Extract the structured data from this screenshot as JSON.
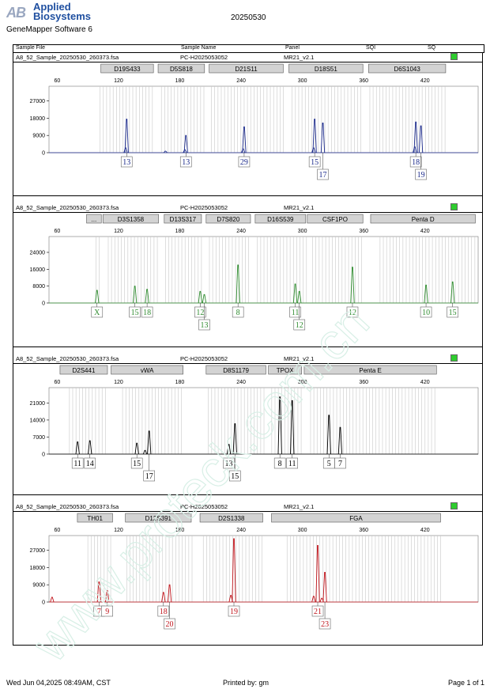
{
  "header": {
    "brand_line1": "Applied",
    "brand_line2": "Biosystems",
    "software": "GeneMapper Software 6",
    "run_date": "20250530",
    "columns": [
      "Sample File",
      "Sample Name",
      "Panel",
      "SQI",
      "SQ"
    ]
  },
  "footer": {
    "date": "Wed Jun 04,2025 08:49AM, CST",
    "printed_by": "Printed by: gm",
    "page": "Page 1 of 1"
  },
  "colors": {
    "blue": "#1b2a8c",
    "green": "#2e8b2e",
    "black": "#000000",
    "red": "#c0141b",
    "status": "#2ecc2e",
    "locus_box": "#d3d3d3",
    "bin_lines": "#c8c8c8",
    "watermark": "#d8efe6"
  },
  "watermark_text": "www.proteck.com.cn",
  "chart_data": [
    {
      "type": "line",
      "dye": "blue",
      "sample_file": "A8_52_Sample_20250530_260373.fsa",
      "sample_name": "PC-H2025053052",
      "panel": "MR21_v2.1",
      "x_ticks": [
        60,
        120,
        180,
        240,
        300,
        360,
        420
      ],
      "xlim": [
        52,
        472
      ],
      "y_ticks": [
        0,
        9000,
        18000,
        27000
      ],
      "ylim": [
        0,
        33000
      ],
      "loci": [
        {
          "name": "D19S433",
          "start": 102,
          "end": 155
        },
        {
          "name": "D5S818",
          "start": 158,
          "end": 205
        },
        {
          "name": "D21S11",
          "start": 208,
          "end": 282
        },
        {
          "name": "D18S51",
          "start": 286,
          "end": 360
        },
        {
          "name": "D6S1043",
          "start": 364,
          "end": 441
        }
      ],
      "bins": [
        [
          102,
          155
        ],
        [
          162,
          205
        ],
        [
          211,
          282
        ],
        [
          290,
          360
        ],
        [
          366,
          441
        ]
      ],
      "peaks": [
        {
          "x": 128,
          "y": 17500
        },
        {
          "x": 127,
          "y": 2500
        },
        {
          "x": 186,
          "y": 9000
        },
        {
          "x": 185,
          "y": 1500
        },
        {
          "x": 166,
          "y": 800
        },
        {
          "x": 243,
          "y": 13500
        },
        {
          "x": 242,
          "y": 2000
        },
        {
          "x": 312,
          "y": 17500
        },
        {
          "x": 320,
          "y": 15500
        },
        {
          "x": 311,
          "y": 2500
        },
        {
          "x": 411,
          "y": 16000
        },
        {
          "x": 416,
          "y": 14000
        },
        {
          "x": 410,
          "y": 3000
        }
      ],
      "alleles": [
        {
          "x": 128,
          "label": "13",
          "row": 1
        },
        {
          "x": 186,
          "label": "13",
          "row": 1
        },
        {
          "x": 243,
          "label": "29",
          "row": 1
        },
        {
          "x": 312,
          "label": "15",
          "row": 1
        },
        {
          "x": 320,
          "label": "17",
          "row": 2
        },
        {
          "x": 411,
          "label": "18",
          "row": 1
        },
        {
          "x": 416,
          "label": "19",
          "row": 2
        }
      ]
    },
    {
      "type": "line",
      "dye": "green",
      "sample_file": "A8_52_Sample_20250530_260373.fsa",
      "sample_name": "PC-H2025053052",
      "panel": "MR21_v2.1",
      "x_ticks": [
        60,
        120,
        180,
        240,
        300,
        360,
        420
      ],
      "xlim": [
        52,
        472
      ],
      "y_ticks": [
        0,
        8000,
        16000,
        24000
      ],
      "ylim": [
        0,
        30000
      ],
      "loci": [
        {
          "name": "...",
          "start": 88,
          "end": 104
        },
        {
          "name": "D3S1358",
          "start": 104,
          "end": 160
        },
        {
          "name": "D13S317",
          "start": 164,
          "end": 202
        },
        {
          "name": "D7S820",
          "start": 205,
          "end": 250
        },
        {
          "name": "D16S539",
          "start": 253,
          "end": 304
        },
        {
          "name": "CSF1PO",
          "start": 304,
          "end": 360
        },
        {
          "name": "Penta D",
          "start": 366,
          "end": 470
        }
      ],
      "bins": [
        [
          98,
          104
        ],
        [
          110,
          160
        ],
        [
          166,
          202
        ],
        [
          209,
          250
        ],
        [
          256,
          304
        ],
        [
          310,
          360
        ],
        [
          376,
          470
        ]
      ],
      "peaks": [
        {
          "x": 99,
          "y": 6000
        },
        {
          "x": 136,
          "y": 8000
        },
        {
          "x": 148,
          "y": 6500
        },
        {
          "x": 200,
          "y": 5500
        },
        {
          "x": 204,
          "y": 4000
        },
        {
          "x": 237,
          "y": 18000
        },
        {
          "x": 293,
          "y": 9000
        },
        {
          "x": 297,
          "y": 5500
        },
        {
          "x": 349,
          "y": 17000
        },
        {
          "x": 421,
          "y": 8500
        },
        {
          "x": 447,
          "y": 10000
        }
      ],
      "alleles": [
        {
          "x": 99,
          "label": "X",
          "row": 1
        },
        {
          "x": 136,
          "label": "15",
          "row": 1
        },
        {
          "x": 148,
          "label": "18",
          "row": 1
        },
        {
          "x": 200,
          "label": "12",
          "row": 1
        },
        {
          "x": 204,
          "label": "13",
          "row": 2
        },
        {
          "x": 237,
          "label": "8",
          "row": 1
        },
        {
          "x": 293,
          "label": "11",
          "row": 1
        },
        {
          "x": 297,
          "label": "12",
          "row": 2
        },
        {
          "x": 349,
          "label": "12",
          "row": 1
        },
        {
          "x": 421,
          "label": "10",
          "row": 1
        },
        {
          "x": 447,
          "label": "15",
          "row": 1
        }
      ]
    },
    {
      "type": "line",
      "dye": "black",
      "sample_file": "A8_52_Sample_20250530_260373.fsa",
      "sample_name": "PC-H2025053052",
      "panel": "MR21_v2.1",
      "x_ticks": [
        60,
        120,
        180,
        240,
        300,
        360,
        420
      ],
      "xlim": [
        52,
        472
      ],
      "y_ticks": [
        0,
        7000,
        14000,
        21000
      ],
      "ylim": [
        0,
        26000
      ],
      "loci": [
        {
          "name": "D2S441",
          "start": 62,
          "end": 110
        },
        {
          "name": "vWA",
          "start": 112,
          "end": 184
        },
        {
          "name": "D8S1179",
          "start": 205,
          "end": 265
        },
        {
          "name": "TPOX",
          "start": 266,
          "end": 300
        },
        {
          "name": "Penta E",
          "start": 301,
          "end": 432
        }
      ],
      "bins": [
        [
          72,
          110
        ],
        [
          124,
          184
        ],
        [
          208,
          265
        ],
        [
          270,
          300
        ],
        [
          308,
          432
        ]
      ],
      "peaks": [
        {
          "x": 80,
          "y": 5000
        },
        {
          "x": 92,
          "y": 5500
        },
        {
          "x": 138,
          "y": 4500
        },
        {
          "x": 150,
          "y": 9500
        },
        {
          "x": 146,
          "y": 1500
        },
        {
          "x": 228,
          "y": 4000
        },
        {
          "x": 234,
          "y": 12500
        },
        {
          "x": 278,
          "y": 23500
        },
        {
          "x": 290,
          "y": 22000
        },
        {
          "x": 326,
          "y": 16000
        },
        {
          "x": 337,
          "y": 11000
        }
      ],
      "alleles": [
        {
          "x": 80,
          "label": "11",
          "row": 1
        },
        {
          "x": 92,
          "label": "14",
          "row": 1
        },
        {
          "x": 138,
          "label": "15",
          "row": 1
        },
        {
          "x": 150,
          "label": "17",
          "row": 2
        },
        {
          "x": 228,
          "label": "13",
          "row": 1
        },
        {
          "x": 234,
          "label": "15",
          "row": 2
        },
        {
          "x": 278,
          "label": "8",
          "row": 1
        },
        {
          "x": 290,
          "label": "11",
          "row": 1
        },
        {
          "x": 326,
          "label": "5",
          "row": 1
        },
        {
          "x": 337,
          "label": "7",
          "row": 1
        }
      ]
    },
    {
      "type": "line",
      "dye": "red",
      "sample_file": "A8_52_Sample_20250530_260373.fsa",
      "sample_name": "PC-H2025053052",
      "panel": "MR21_v2.1",
      "x_ticks": [
        60,
        120,
        180,
        240,
        300,
        360,
        420
      ],
      "xlim": [
        52,
        472
      ],
      "y_ticks": [
        0,
        9000,
        18000,
        27000
      ],
      "ylim": [
        0,
        33000
      ],
      "loci": [
        {
          "name": "TH01",
          "start": 79,
          "end": 115
        },
        {
          "name": "D12S391",
          "start": 126,
          "end": 192
        },
        {
          "name": "D2S1338",
          "start": 199,
          "end": 262
        },
        {
          "name": "FGA",
          "start": 269,
          "end": 436
        }
      ],
      "bins": [
        [
          90,
          115
        ],
        [
          128,
          192
        ],
        [
          203,
          262
        ],
        [
          285,
          436
        ]
      ],
      "peaks": [
        {
          "x": 55,
          "y": 2500
        },
        {
          "x": 101,
          "y": 10500
        },
        {
          "x": 109,
          "y": 6000
        },
        {
          "x": 164,
          "y": 5000
        },
        {
          "x": 170,
          "y": 9000
        },
        {
          "x": 233,
          "y": 33000
        },
        {
          "x": 230,
          "y": 3500
        },
        {
          "x": 315,
          "y": 29500
        },
        {
          "x": 311,
          "y": 3000
        },
        {
          "x": 322,
          "y": 15500
        },
        {
          "x": 319,
          "y": 2000
        }
      ],
      "alleles": [
        {
          "x": 101,
          "label": "7",
          "row": 1
        },
        {
          "x": 109,
          "label": "9",
          "row": 1
        },
        {
          "x": 164,
          "label": "18",
          "row": 1
        },
        {
          "x": 170,
          "label": "20",
          "row": 2
        },
        {
          "x": 233,
          "label": "19",
          "row": 1
        },
        {
          "x": 315,
          "label": "21",
          "row": 1
        },
        {
          "x": 322,
          "label": "23",
          "row": 2
        }
      ]
    }
  ]
}
